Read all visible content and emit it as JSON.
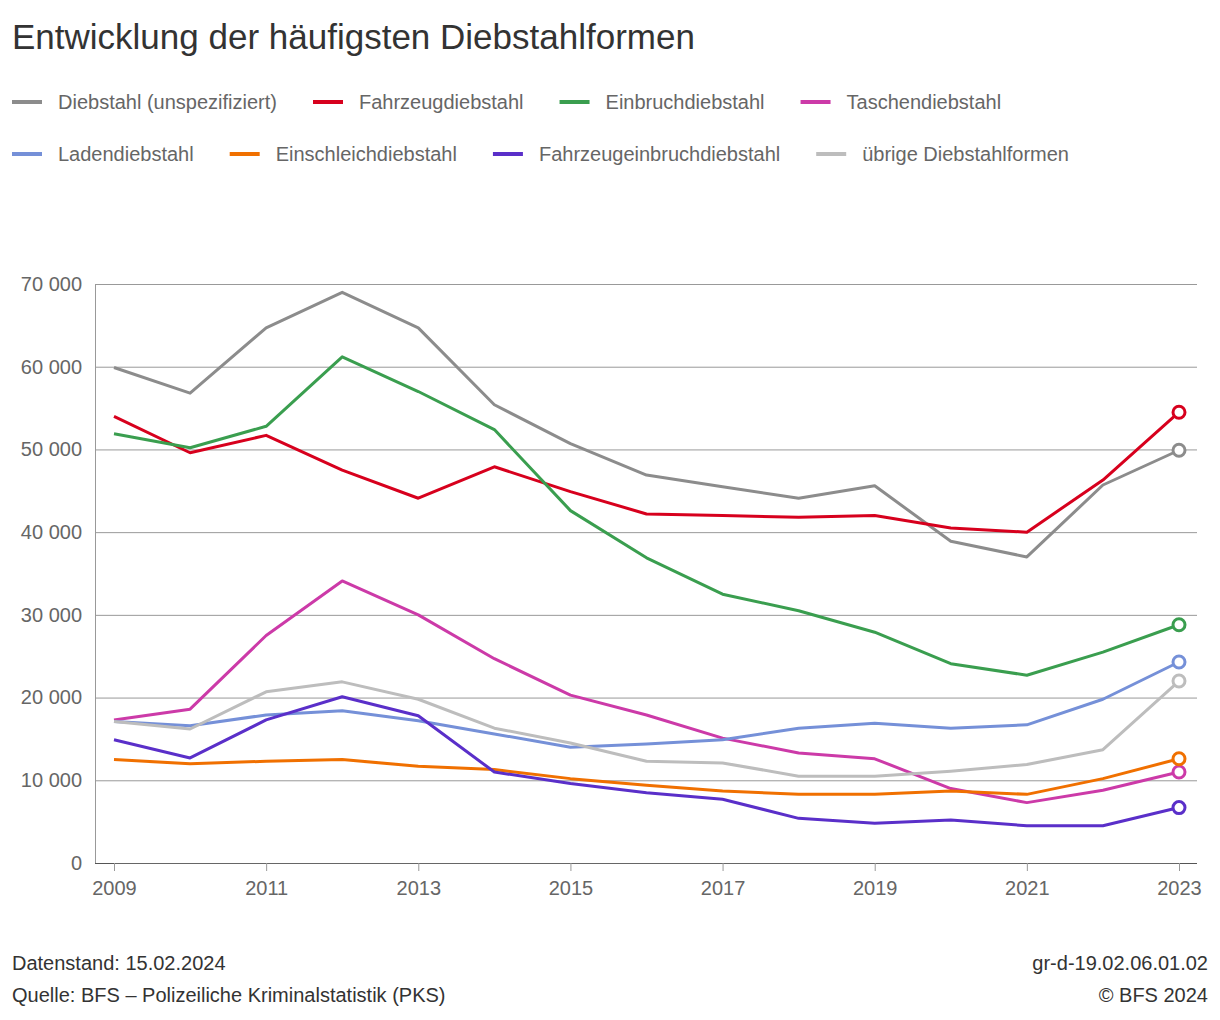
{
  "chart_data": {
    "type": "line",
    "title": "Entwicklung der häufigsten Diebstahlformen",
    "x": [
      2009,
      2010,
      2011,
      2012,
      2013,
      2014,
      2015,
      2016,
      2017,
      2018,
      2019,
      2020,
      2021,
      2022,
      2023
    ],
    "xlim": [
      2009,
      2023
    ],
    "xticks": [
      2009,
      2011,
      2013,
      2015,
      2017,
      2019,
      2021,
      2023
    ],
    "ylim": [
      0,
      70000
    ],
    "yticks": [
      0,
      {
        "value": 10000,
        "label": "10 000"
      },
      {
        "value": 20000,
        "label": "20 000"
      },
      {
        "value": 30000,
        "label": "30 000"
      },
      {
        "value": 40000,
        "label": "40 000"
      },
      {
        "value": 50000,
        "label": "50 000"
      },
      {
        "value": 60000,
        "label": "60 000"
      },
      {
        "value": 70000,
        "label": "70 000"
      }
    ],
    "grid": true,
    "legend": "top-left",
    "marker": "circle",
    "series": [
      {
        "name": "Diebstahl (unspezifiziert)",
        "color": "#8c8c8c",
        "values": [
          59900,
          56800,
          64700,
          69000,
          64700,
          55400,
          50700,
          46900,
          45500,
          44100,
          45600,
          38900,
          37000,
          45700,
          49900
        ]
      },
      {
        "name": "Fahrzeugdiebstahl",
        "color": "#d7001d",
        "values": [
          54000,
          49600,
          51700,
          47500,
          44100,
          47900,
          44900,
          42200,
          42000,
          41800,
          42000,
          40500,
          40000,
          46300,
          54500
        ]
      },
      {
        "name": "Einbruchdiebstahl",
        "color": "#3a9e4f",
        "values": [
          51900,
          50200,
          52800,
          61200,
          57000,
          52400,
          42600,
          36900,
          32500,
          30500,
          27900,
          24100,
          22700,
          25500,
          28800
        ]
      },
      {
        "name": "Taschendiebstahl",
        "color": "#cc3aa8",
        "values": [
          17300,
          18600,
          27500,
          34100,
          30000,
          24700,
          20300,
          17900,
          15100,
          13300,
          12600,
          9000,
          7300,
          8800,
          11000
        ]
      },
      {
        "name": "Ladendiebstahl",
        "color": "#7590d8",
        "values": [
          17100,
          16600,
          17900,
          18400,
          17200,
          15600,
          14000,
          14400,
          14900,
          16300,
          16900,
          16300,
          16700,
          19800,
          24300
        ]
      },
      {
        "name": "Einschleichdiebstahl",
        "color": "#f07000",
        "values": [
          12500,
          12000,
          12300,
          12500,
          11700,
          11300,
          10200,
          9400,
          8700,
          8300,
          8300,
          8700,
          8300,
          10200,
          12600
        ]
      },
      {
        "name": "Fahrzeugeinbruchdiebstahl",
        "color": "#5a2fc9",
        "values": [
          14900,
          12700,
          17300,
          20100,
          17800,
          11000,
          9600,
          8500,
          7700,
          5400,
          4800,
          5200,
          4500,
          4500,
          6700
        ]
      },
      {
        "name": "übrige Diebstahlformen",
        "color": "#bdbdbd",
        "values": [
          17100,
          16200,
          20700,
          21900,
          19800,
          16300,
          14500,
          12300,
          12100,
          10500,
          10500,
          11100,
          11900,
          13700,
          22000
        ]
      }
    ],
    "footer_left": [
      "Datenstand: 15.02.2024",
      "Quelle: BFS – Polizeiliche Kriminalstatistik (PKS)"
    ],
    "footer_right": [
      "gr-d-19.02.06.01.02",
      "© BFS 2024"
    ]
  }
}
